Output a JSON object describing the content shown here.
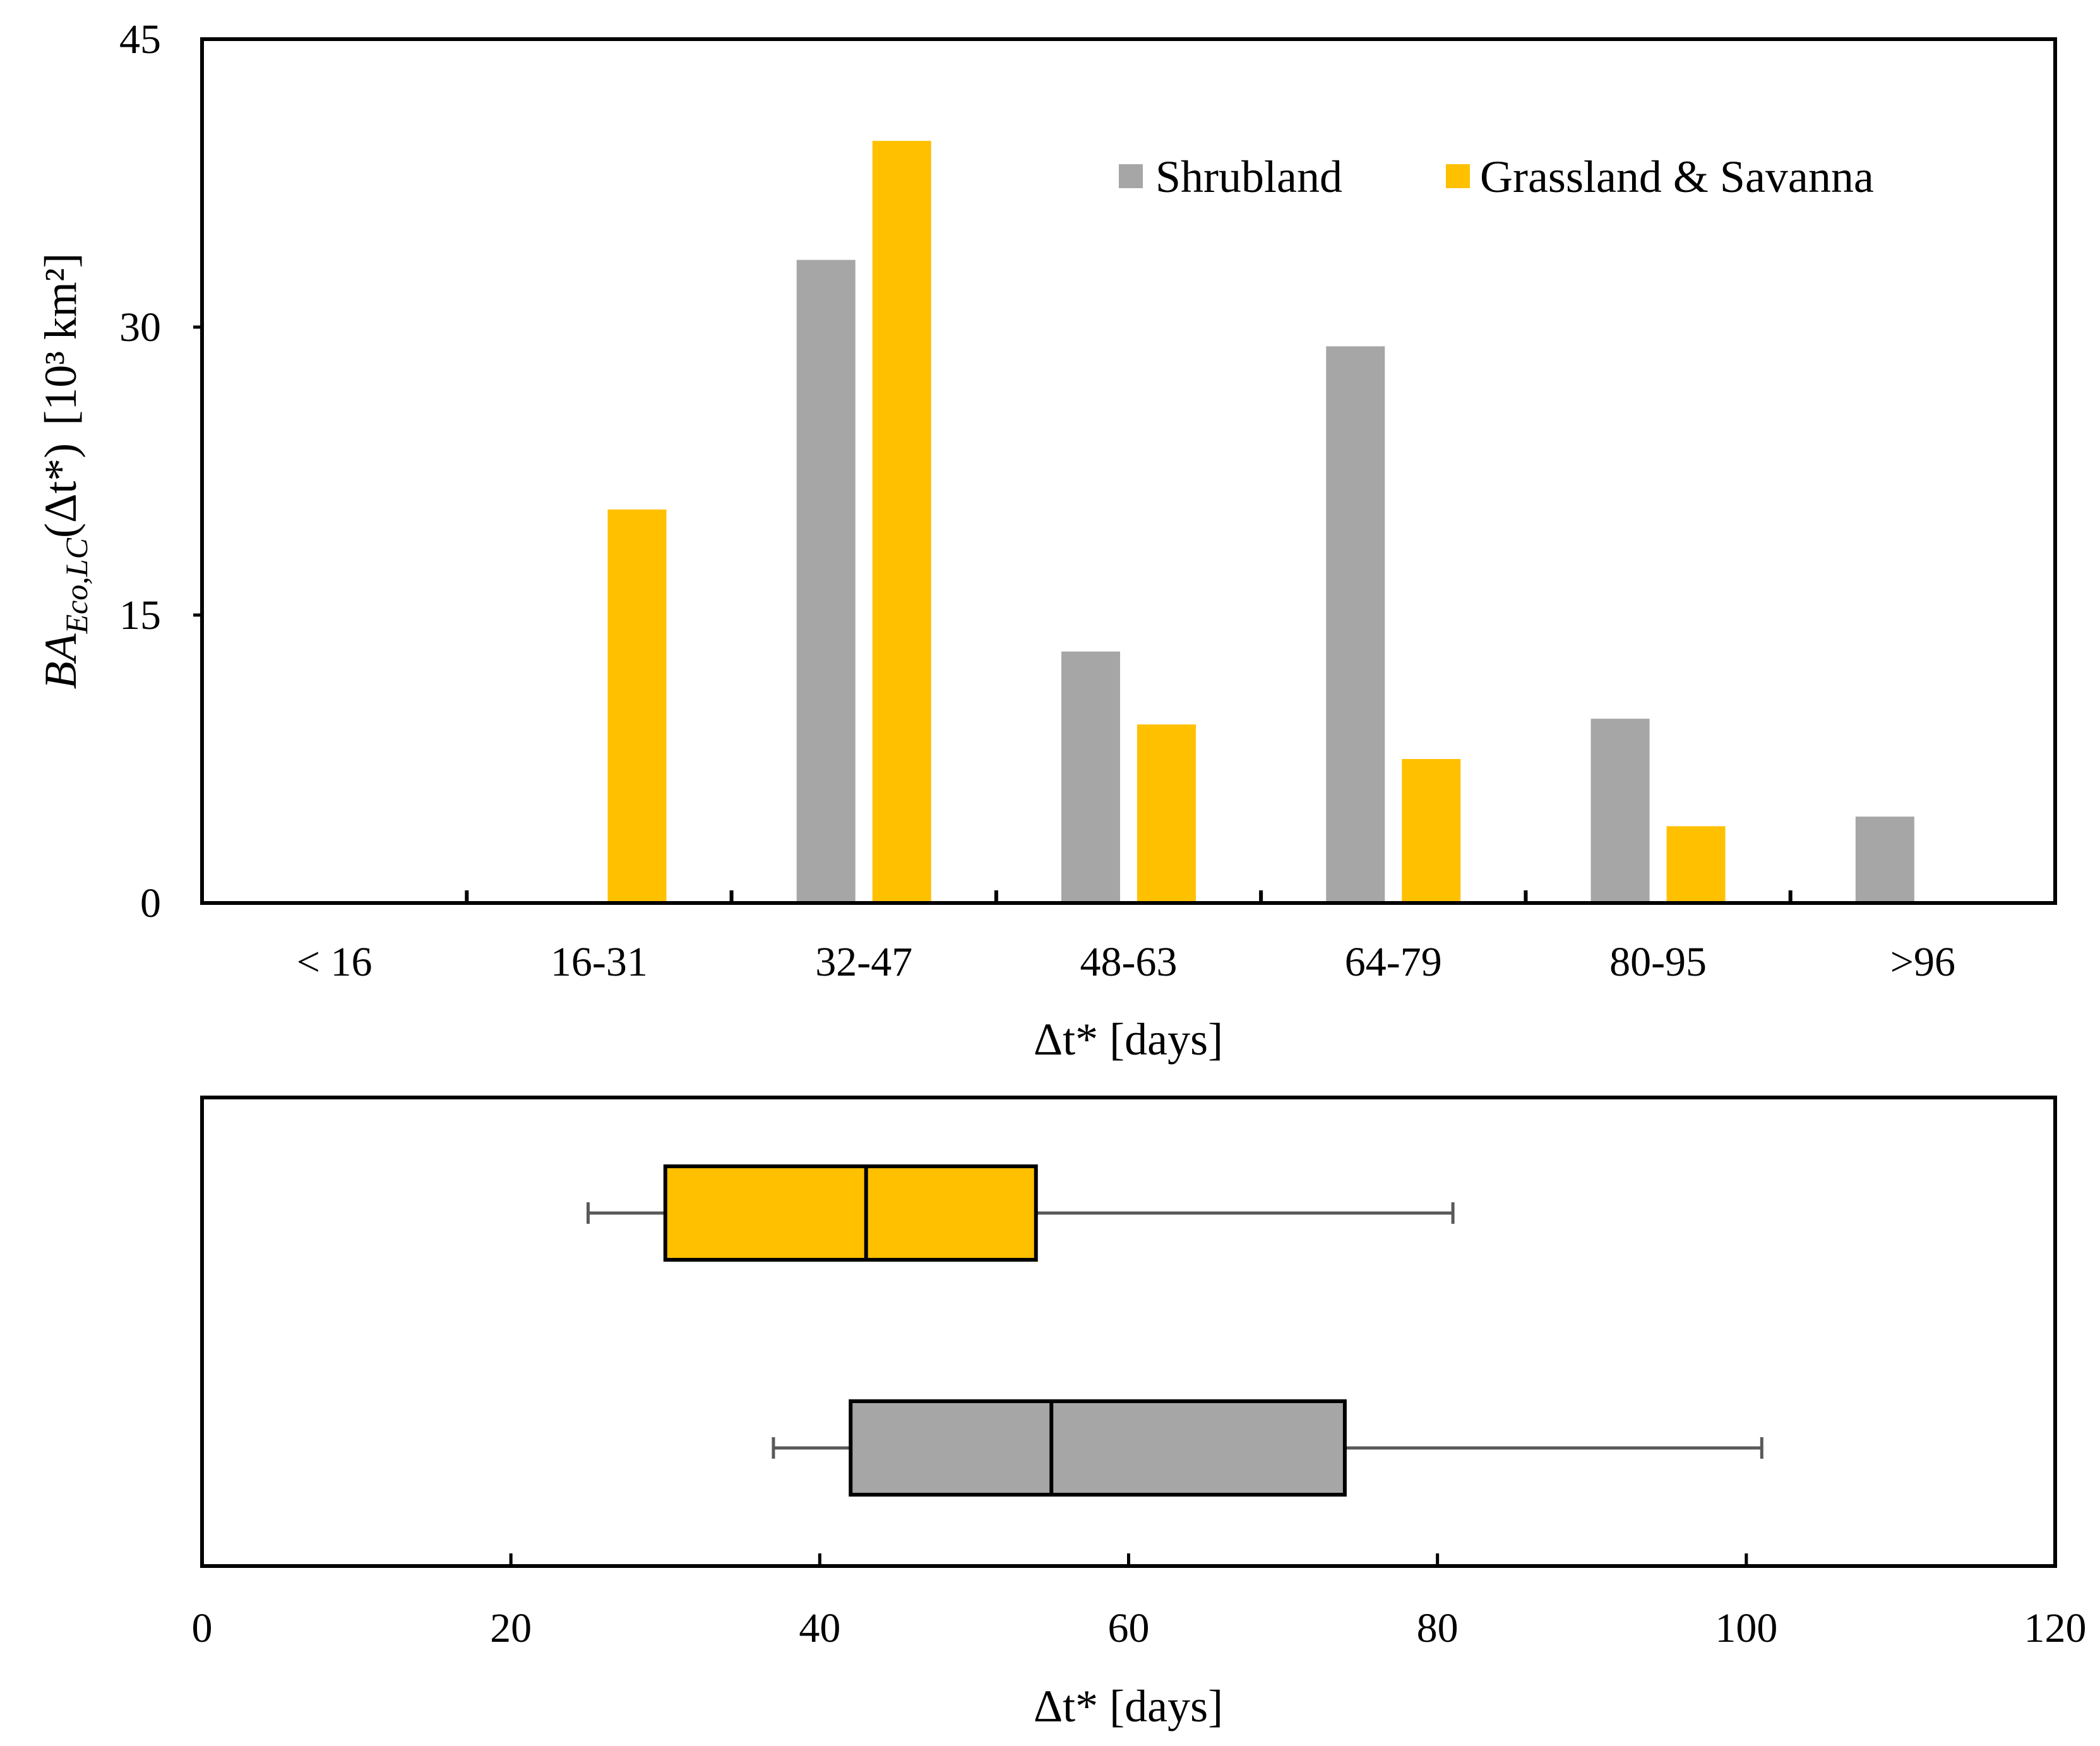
{
  "chart_data": [
    {
      "type": "bar",
      "categories": [
        "< 16",
        "16-31",
        "32-47",
        "48-63",
        "64-79",
        "80-95",
        ">96"
      ],
      "series": [
        {
          "name": "Shrubland",
          "color": "#a6a6a6",
          "values": [
            0,
            0,
            33.5,
            13.1,
            29.0,
            9.6,
            4.5
          ]
        },
        {
          "name": "Grassland & Savanna",
          "color": "#ffc000",
          "values": [
            0,
            20.5,
            39.7,
            9.3,
            7.5,
            4.0,
            0
          ]
        }
      ],
      "ylim": [
        0,
        45
      ],
      "yticks": [
        "0",
        "15",
        "30",
        "45"
      ],
      "xlabel": "Δt* [days]",
      "ylabel": {
        "main": "BA",
        "subscript": "Eco,LC",
        "arg": "(Δt*)",
        "units": "[10³ km²]"
      },
      "legend_position": "top-right"
    },
    {
      "type": "boxplot",
      "series": [
        {
          "name": "Grassland & Savanna",
          "color": "#ffc000",
          "whisker_low": 25,
          "q1": 30,
          "median": 43,
          "q3": 54,
          "whisker_high": 81
        },
        {
          "name": "Shrubland",
          "color": "#a6a6a6",
          "whisker_low": 37,
          "q1": 42,
          "median": 55,
          "q3": 74,
          "whisker_high": 101
        }
      ],
      "xlim": [
        0,
        120
      ],
      "xticks": [
        "0",
        "20",
        "40",
        "60",
        "80",
        "100",
        "120"
      ],
      "xlabel": "Δt* [days]"
    }
  ]
}
